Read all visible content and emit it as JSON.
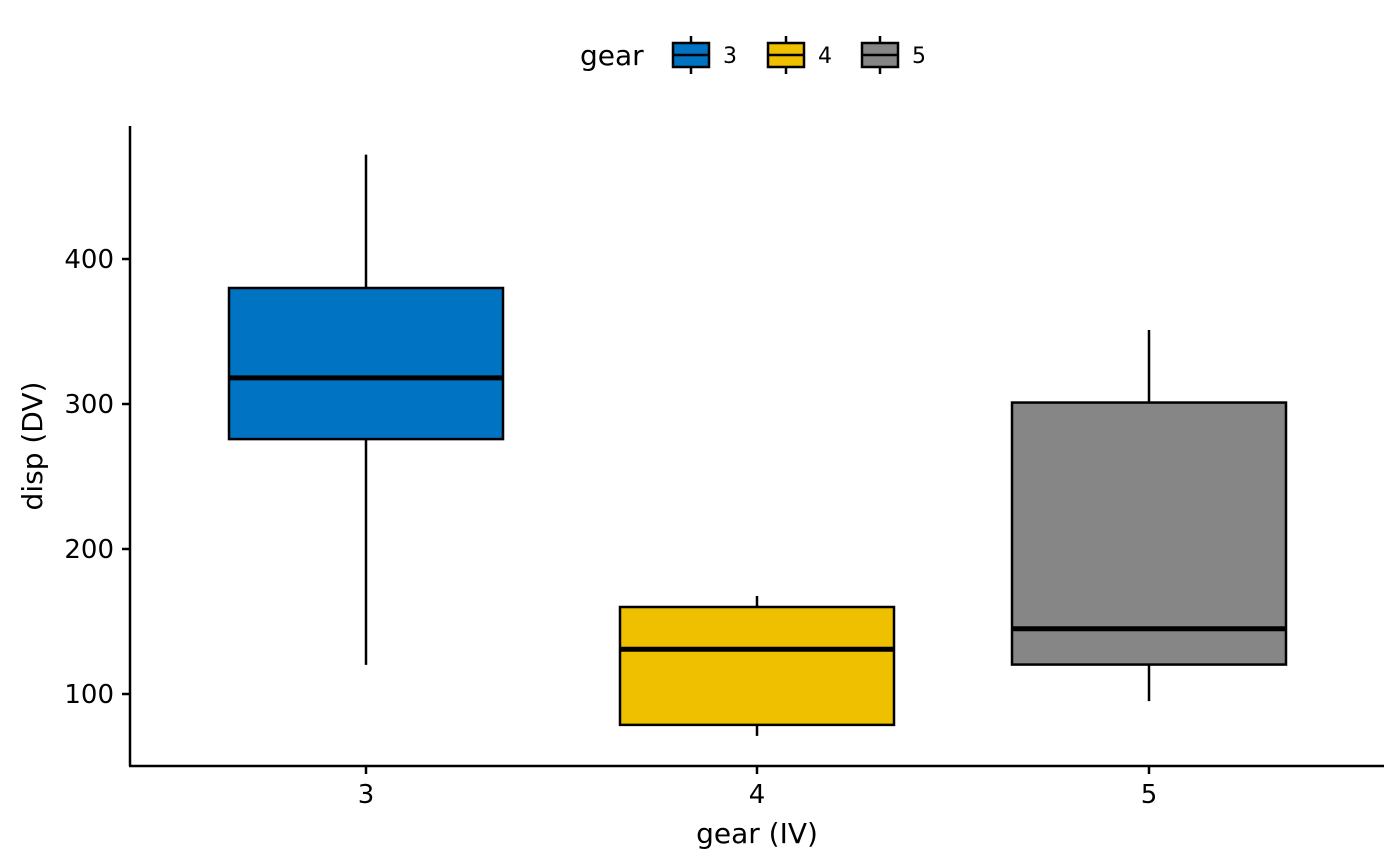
{
  "chart_data": {
    "type": "boxplot",
    "xlabel": "gear (IV)",
    "ylabel": "disp (DV)",
    "categories": [
      "3",
      "4",
      "5"
    ],
    "ylim": [
      50,
      490
    ],
    "yticks": [
      100,
      200,
      300,
      400
    ],
    "legend": {
      "title": "gear",
      "position": "top",
      "entries": [
        "3",
        "4",
        "5"
      ]
    },
    "grid": false,
    "series": [
      {
        "category": "3",
        "min": 120.1,
        "q1": 275.8,
        "median": 318.0,
        "q3": 380.0,
        "max": 472.0,
        "color": "#0073C2"
      },
      {
        "category": "4",
        "min": 71.1,
        "q1": 78.7,
        "median": 130.9,
        "q3": 160.0,
        "max": 167.6,
        "color": "#EFC000"
      },
      {
        "category": "5",
        "min": 95.1,
        "q1": 120.3,
        "median": 145.0,
        "q3": 301.0,
        "max": 351.0,
        "color": "#868686"
      }
    ]
  }
}
